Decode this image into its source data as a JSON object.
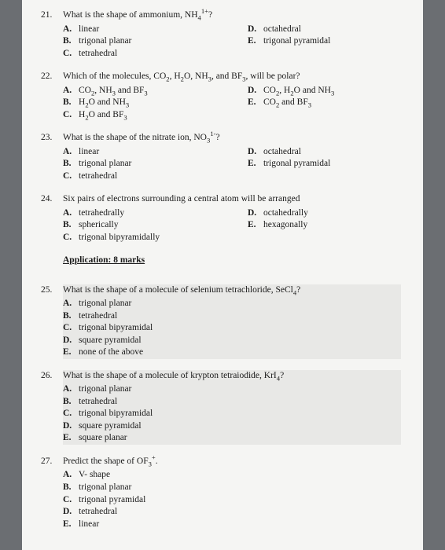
{
  "questions": [
    {
      "num": "21.",
      "stem_html": "What is the shape of ammonium, NH<sub>4</sub><sup>1+</sup>?",
      "layout": "two-col",
      "left": [
        {
          "l": "A.",
          "t": "linear"
        },
        {
          "l": "B.",
          "t": "trigonal planar"
        },
        {
          "l": "C.",
          "t": "tetrahedral"
        }
      ],
      "right": [
        {
          "l": "D.",
          "t": "octahedral"
        },
        {
          "l": "E.",
          "t": "trigonal pyramidal"
        }
      ]
    },
    {
      "num": "22.",
      "stem_html": "Which of the molecules, CO<sub>2</sub>, H<sub>2</sub>O, NH<sub>3</sub>, and BF<sub>3</sub>, will be polar?",
      "layout": "two-col",
      "left": [
        {
          "l": "A.",
          "t_html": "CO<sub>2</sub>, NH<sub>3</sub> and BF<sub>3</sub>"
        },
        {
          "l": "B.",
          "t_html": "H<sub>2</sub>O and NH<sub>3</sub>"
        },
        {
          "l": "C.",
          "t_html": "H<sub>2</sub>O and BF<sub>3</sub>"
        }
      ],
      "right": [
        {
          "l": "D.",
          "t_html": "CO<sub>2</sub>, H<sub>2</sub>O and NH<sub>3</sub>"
        },
        {
          "l": "E.",
          "t_html": "CO<sub>2</sub> and BF<sub>3</sub>"
        }
      ]
    },
    {
      "num": "23.",
      "stem_html": "What is the shape of the nitrate ion, NO<sub>3</sub><sup>1-</sup>?",
      "layout": "two-col",
      "left": [
        {
          "l": "A.",
          "t": "linear"
        },
        {
          "l": "B.",
          "t": "trigonal planar"
        },
        {
          "l": "C.",
          "t": "tetrahedral"
        }
      ],
      "right": [
        {
          "l": "D.",
          "t": "octahedral"
        },
        {
          "l": "E.",
          "t": "trigonal pyramidal"
        }
      ]
    },
    {
      "num": "24.",
      "stem_html": "Six pairs of electrons surrounding a central atom will be arranged",
      "layout": "two-col",
      "left": [
        {
          "l": "A.",
          "t": "tetrahedrally"
        },
        {
          "l": "B.",
          "t": "spherically"
        },
        {
          "l": "C.",
          "t": "trigonal bipyramidally"
        }
      ],
      "right": [
        {
          "l": "D.",
          "t": "octahedrally"
        },
        {
          "l": "E.",
          "t": "hexagonally"
        }
      ]
    }
  ],
  "section_heading": "Application: 8 marks",
  "shaded_questions": [
    {
      "num": "25.",
      "stem_html": "What is the shape of a molecule of selenium tetrachloride, SeCl<sub>4</sub>?",
      "layout": "single",
      "opts": [
        {
          "l": "A.",
          "t": "trigonal planar"
        },
        {
          "l": "B.",
          "t": "tetrahedral"
        },
        {
          "l": "C.",
          "t": "trigonal bipyramidal"
        },
        {
          "l": "D.",
          "t": "square pyramidal"
        },
        {
          "l": "E.",
          "t": "none of the above"
        }
      ]
    },
    {
      "num": "26.",
      "stem_html": "What is the shape of a molecule of krypton tetraiodide, KrI<sub>4</sub>?",
      "layout": "single",
      "opts": [
        {
          "l": "A.",
          "t": "trigonal planar"
        },
        {
          "l": "B.",
          "t": "tetrahedral"
        },
        {
          "l": "C.",
          "t": "trigonal bipyramidal"
        },
        {
          "l": "D.",
          "t": "square pyramidal"
        },
        {
          "l": "E.",
          "t": "square planar"
        }
      ]
    }
  ],
  "plain_questions2": [
    {
      "num": "27.",
      "stem_html": "Predict the shape of OF<sub>3</sub><sup>+</sup>.",
      "layout": "single",
      "opts": [
        {
          "l": "A.",
          "t": "V- shape"
        },
        {
          "l": "B.",
          "t": "trigonal planar"
        },
        {
          "l": "C.",
          "t": "trigonal pyramidal"
        },
        {
          "l": "D.",
          "t": "tetrahedral"
        },
        {
          "l": "E.",
          "t": "linear"
        }
      ]
    }
  ]
}
